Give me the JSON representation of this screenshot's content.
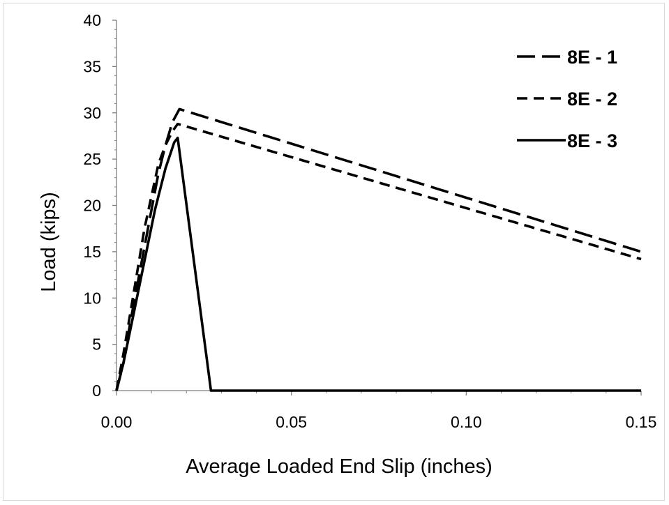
{
  "chart_data": {
    "type": "line",
    "title": "",
    "xlabel": "Average Loaded End Slip (inches)",
    "ylabel": "Load (kips)",
    "xlim": [
      0,
      0.15
    ],
    "ylim": [
      0,
      40
    ],
    "x_ticks": [
      0,
      0.05,
      0.1,
      0.15
    ],
    "x_tick_labels": [
      "0.00",
      "0.05",
      "0.10",
      "0.15"
    ],
    "y_ticks": [
      0,
      5,
      10,
      15,
      20,
      25,
      30,
      35,
      40
    ],
    "y_tick_labels": [
      "0",
      "5",
      "10",
      "15",
      "20",
      "25",
      "30",
      "35",
      "40"
    ],
    "grid": false,
    "legend_position": "top-right",
    "series": [
      {
        "name": "8E - 1",
        "style": "long-dash",
        "color": "#000000",
        "points": [
          [
            0,
            0
          ],
          [
            0.002,
            3
          ],
          [
            0.004,
            7.5
          ],
          [
            0.006,
            11.5
          ],
          [
            0.008,
            15.5
          ],
          [
            0.01,
            19.5
          ],
          [
            0.012,
            23.5
          ],
          [
            0.014,
            26.5
          ],
          [
            0.016,
            29
          ],
          [
            0.018,
            30.4
          ],
          [
            0.15,
            15
          ]
        ]
      },
      {
        "name": "8E - 2",
        "style": "dash",
        "color": "#000000",
        "points": [
          [
            0,
            0
          ],
          [
            0.002,
            4
          ],
          [
            0.004,
            8.5
          ],
          [
            0.006,
            13
          ],
          [
            0.008,
            17.5
          ],
          [
            0.01,
            21
          ],
          [
            0.012,
            24.5
          ],
          [
            0.014,
            26.5
          ],
          [
            0.016,
            28
          ],
          [
            0.0175,
            28.8
          ],
          [
            0.15,
            14.2
          ]
        ]
      },
      {
        "name": "8E - 3",
        "style": "solid",
        "color": "#000000",
        "points": [
          [
            0,
            0
          ],
          [
            0.002,
            3
          ],
          [
            0.005,
            8.5
          ],
          [
            0.008,
            14
          ],
          [
            0.011,
            19.5
          ],
          [
            0.014,
            24
          ],
          [
            0.0165,
            26.8
          ],
          [
            0.0175,
            27.3
          ],
          [
            0.027,
            0
          ],
          [
            0.15,
            0
          ]
        ]
      }
    ]
  }
}
